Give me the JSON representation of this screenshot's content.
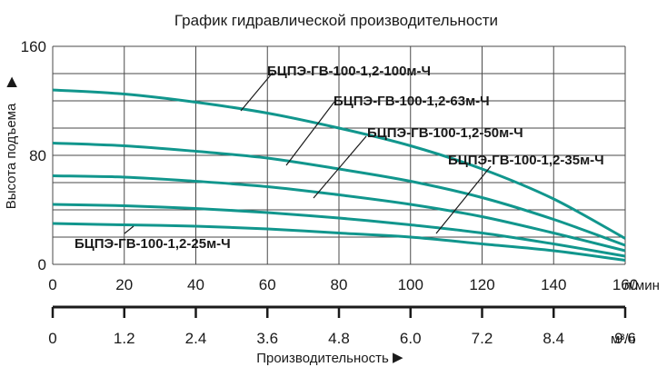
{
  "chart_data": {
    "type": "line",
    "title": "График гидравлической производительности",
    "ylabel": "Высота подъема",
    "xlabel": "Производительность",
    "x_unit": "л/мин",
    "x2_unit": "м³/ч",
    "xlim": [
      0,
      160
    ],
    "ylim": [
      0,
      160
    ],
    "x_ticks": [
      "0",
      "20",
      "40",
      "60",
      "80",
      "100",
      "120",
      "140",
      "160"
    ],
    "x2_ticks": [
      "0",
      "1.2",
      "2.4",
      "3.6",
      "4.8",
      "6.0",
      "7.2",
      "8.4",
      "9.6"
    ],
    "y_ticks": [
      "0",
      "80",
      "160"
    ],
    "grid": true,
    "curve_color": "#11968d",
    "series": [
      {
        "name": "БЦПЭ-ГВ-100-1,2-100м-Ч",
        "points": [
          [
            0,
            128
          ],
          [
            20,
            125
          ],
          [
            40,
            119
          ],
          [
            60,
            111
          ],
          [
            80,
            100
          ],
          [
            100,
            87
          ],
          [
            120,
            70
          ],
          [
            140,
            48
          ],
          [
            160,
            19
          ]
        ]
      },
      {
        "name": "БЦПЭ-ГВ-100-1,2-63м-Ч",
        "points": [
          [
            0,
            89
          ],
          [
            20,
            87
          ],
          [
            40,
            83
          ],
          [
            60,
            78
          ],
          [
            80,
            70
          ],
          [
            100,
            61
          ],
          [
            120,
            49
          ],
          [
            140,
            33
          ],
          [
            160,
            14
          ]
        ]
      },
      {
        "name": "БЦПЭ-ГВ-100-1,2-50м-Ч",
        "points": [
          [
            0,
            65
          ],
          [
            20,
            64
          ],
          [
            40,
            61
          ],
          [
            60,
            57
          ],
          [
            80,
            51
          ],
          [
            100,
            44
          ],
          [
            120,
            35
          ],
          [
            140,
            23
          ],
          [
            160,
            10
          ]
        ]
      },
      {
        "name": "БЦПЭ-ГВ-100-1,2-35м-Ч",
        "points": [
          [
            0,
            44
          ],
          [
            20,
            43
          ],
          [
            40,
            41
          ],
          [
            60,
            38
          ],
          [
            80,
            34
          ],
          [
            100,
            29
          ],
          [
            120,
            23
          ],
          [
            140,
            15
          ],
          [
            160,
            6
          ]
        ]
      },
      {
        "name": "БЦПЭ-ГВ-100-1,2-25м-Ч",
        "points": [
          [
            0,
            30
          ],
          [
            20,
            29
          ],
          [
            40,
            28
          ],
          [
            60,
            26
          ],
          [
            80,
            23
          ],
          [
            100,
            20
          ],
          [
            120,
            15
          ],
          [
            140,
            10
          ],
          [
            160,
            3
          ]
        ]
      }
    ]
  }
}
